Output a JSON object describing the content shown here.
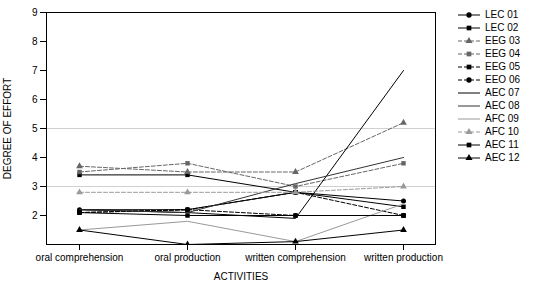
{
  "chart_data": {
    "type": "line",
    "categories": [
      "oral comprehension",
      "oral production",
      "written comprehension",
      "written production"
    ],
    "series": [
      {
        "name": "LEC 01",
        "values": [
          2.2,
          2.2,
          2.8,
          2.5
        ],
        "color": "#000000",
        "marker": "circle",
        "line_style": "solid"
      },
      {
        "name": "LEC 02",
        "values": [
          3.4,
          3.4,
          2.8,
          2.3
        ],
        "color": "#000000",
        "marker": "square",
        "line_style": "solid"
      },
      {
        "name": "EEG 03",
        "values": [
          3.7,
          3.5,
          3.5,
          5.2
        ],
        "color": "#666666",
        "marker": "triangle",
        "line_style": "dashed"
      },
      {
        "name": "EEG 04",
        "values": [
          3.5,
          3.8,
          3.0,
          3.8
        ],
        "color": "#666666",
        "marker": "square",
        "line_style": "dashed"
      },
      {
        "name": "EEG 05",
        "values": [
          2.1,
          2.2,
          2.8,
          2.0
        ],
        "color": "#000000",
        "marker": "square",
        "line_style": "dashed"
      },
      {
        "name": "EEO 06",
        "values": [
          2.1,
          2.2,
          2.0,
          2.0
        ],
        "color": "#000000",
        "marker": "circle",
        "line_style": "dashed"
      },
      {
        "name": "AEC 07",
        "values": [
          2.2,
          2.1,
          1.9,
          7.0
        ],
        "color": "#000000",
        "marker": "none",
        "line_style": "solid"
      },
      {
        "name": "AEC 08",
        "values": [
          2.2,
          2.1,
          3.1,
          4.0
        ],
        "color": "#333333",
        "marker": "none",
        "line_style": "solid"
      },
      {
        "name": "AFC 09",
        "values": [
          1.5,
          1.8,
          1.1,
          2.4
        ],
        "color": "#999999",
        "marker": "none",
        "line_style": "solid"
      },
      {
        "name": "AFC 10",
        "values": [
          2.8,
          2.8,
          2.8,
          3.0
        ],
        "color": "#999999",
        "marker": "triangle",
        "line_style": "dashed"
      },
      {
        "name": "AEC 11",
        "values": [
          2.1,
          2.0,
          2.0,
          2.0
        ],
        "color": "#000000",
        "marker": "square",
        "line_style": "solid"
      },
      {
        "name": "AEC 12",
        "values": [
          1.5,
          1.0,
          1.1,
          1.5
        ],
        "color": "#000000",
        "marker": "triangle",
        "line_style": "solid"
      }
    ],
    "xlabel": "ACTIVITIES",
    "ylabel": "DEGREE OF EFFORT",
    "ylim": [
      1,
      9
    ],
    "yticks": [
      2,
      3,
      4,
      5,
      6,
      7,
      8,
      9
    ],
    "grid": [
      3,
      5
    ],
    "legend": "right"
  }
}
